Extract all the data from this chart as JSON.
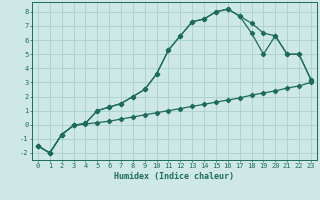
{
  "xlabel": "Humidex (Indice chaleur)",
  "background_color": "#cde8e5",
  "grid_color": "#aacfcc",
  "line_color": "#1e6b5e",
  "xlim": [
    -0.5,
    23.5
  ],
  "ylim": [
    -2.5,
    8.7
  ],
  "xticks": [
    0,
    1,
    2,
    3,
    4,
    5,
    6,
    7,
    8,
    9,
    10,
    11,
    12,
    13,
    14,
    15,
    16,
    17,
    18,
    19,
    20,
    21,
    22,
    23
  ],
  "yticks": [
    -2,
    -1,
    0,
    1,
    2,
    3,
    4,
    5,
    6,
    7,
    8
  ],
  "line1_x": [
    0,
    1,
    2,
    3,
    4,
    5,
    6,
    7,
    8,
    9,
    10,
    11,
    12,
    13,
    14,
    15,
    16,
    17,
    18,
    19,
    20,
    21,
    22,
    23
  ],
  "line1_y": [
    -1.5,
    -2.0,
    -0.7,
    -0.05,
    0.05,
    0.15,
    0.25,
    0.4,
    0.55,
    0.7,
    0.85,
    1.0,
    1.15,
    1.3,
    1.45,
    1.6,
    1.75,
    1.9,
    2.1,
    2.25,
    2.4,
    2.6,
    2.75,
    3.0
  ],
  "line2_x": [
    0,
    1,
    2,
    3,
    4,
    5,
    6,
    7,
    8,
    9,
    10,
    11,
    12,
    13,
    14,
    15,
    16,
    17,
    18,
    19,
    20,
    21,
    22,
    23
  ],
  "line2_y": [
    -1.5,
    -2.0,
    -0.7,
    -0.05,
    0.1,
    1.0,
    1.25,
    1.5,
    2.0,
    2.5,
    3.6,
    5.3,
    6.3,
    7.3,
    7.5,
    8.0,
    8.2,
    7.7,
    7.2,
    6.5,
    6.3,
    5.0,
    5.0,
    3.2
  ],
  "line3_x": [
    0,
    1,
    2,
    3,
    4,
    5,
    6,
    7,
    8,
    9,
    10,
    11,
    12,
    13,
    14,
    15,
    16,
    17,
    18,
    19,
    20,
    21,
    22,
    23
  ],
  "line3_y": [
    -1.5,
    -2.0,
    -0.7,
    -0.05,
    0.1,
    1.0,
    1.25,
    1.5,
    2.0,
    2.5,
    3.6,
    5.3,
    6.3,
    7.3,
    7.5,
    8.0,
    8.2,
    7.7,
    6.5,
    5.0,
    6.3,
    5.0,
    5.0,
    3.2
  ],
  "marker": "D",
  "markersize": 2.2,
  "linewidth": 0.9,
  "tick_fontsize": 5.0,
  "xlabel_fontsize": 6.0
}
